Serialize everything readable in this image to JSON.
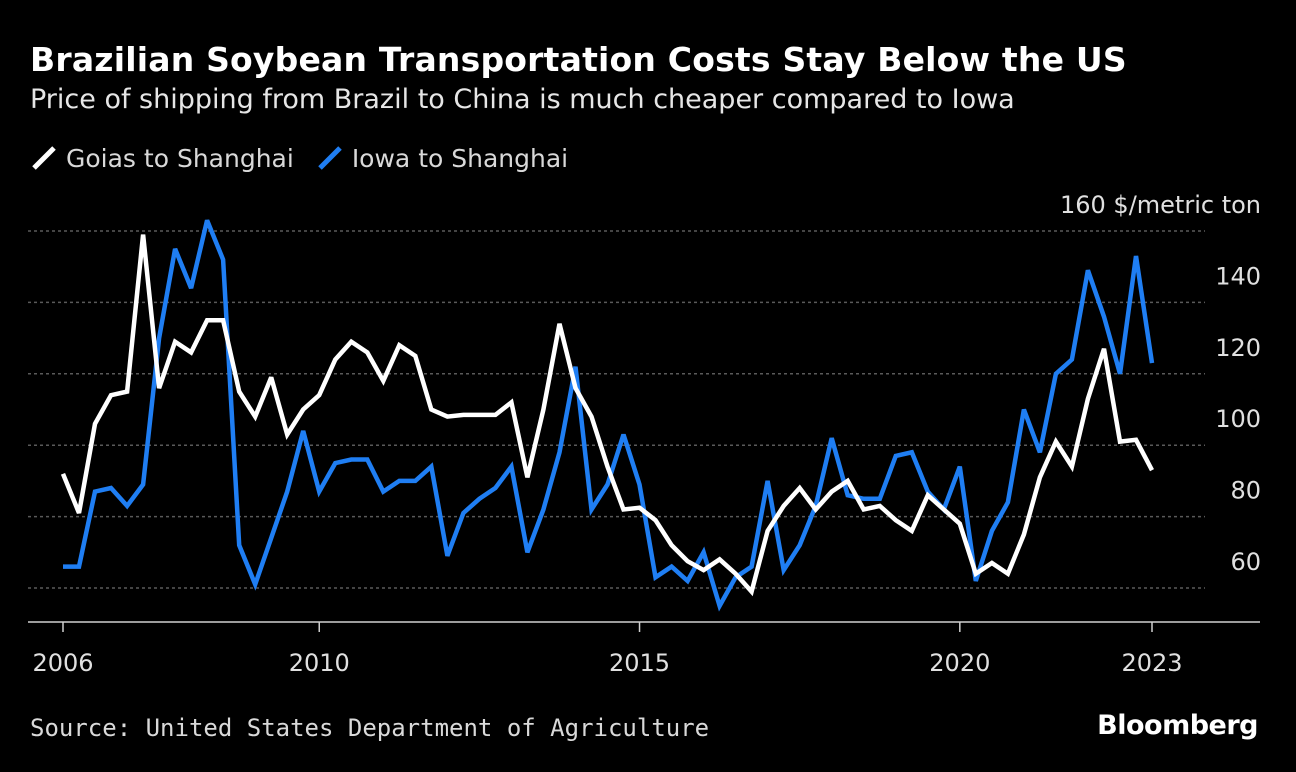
{
  "chart_data": {
    "type": "line",
    "title": "Brazilian Soybean Transportation Costs Stay Below the US",
    "subtitle": "Price of shipping from Brazil to China is much cheaper compared to Iowa",
    "ylabel": "160 $/metric ton",
    "y_tick_labels": [
      "60",
      "80",
      "100",
      "120",
      "140"
    ],
    "y_ticks": [
      60,
      80,
      100,
      120,
      140,
      160
    ],
    "ylim": [
      51,
      162
    ],
    "x_tick_labels": [
      "2006",
      "2010",
      "2015",
      "2020",
      "2023"
    ],
    "x_ticks": [
      2006,
      2010,
      2015,
      2020,
      2023
    ],
    "xlim": [
      2005.5,
      2023.66
    ],
    "grid": true,
    "legend_position": "top-left",
    "x": [
      2006.0,
      2006.25,
      2006.5,
      2006.75,
      2007.0,
      2007.25,
      2007.5,
      2007.75,
      2008.0,
      2008.25,
      2008.5,
      2008.75,
      2009.0,
      2009.25,
      2009.5,
      2009.75,
      2010.0,
      2010.25,
      2010.5,
      2010.75,
      2011.0,
      2011.25,
      2011.5,
      2011.75,
      2012.0,
      2012.25,
      2012.5,
      2012.75,
      2013.0,
      2013.25,
      2013.5,
      2013.75,
      2014.0,
      2014.25,
      2014.5,
      2014.75,
      2015.0,
      2015.25,
      2015.5,
      2015.75,
      2016.0,
      2016.25,
      2016.5,
      2016.75,
      2017.0,
      2017.25,
      2017.5,
      2017.75,
      2018.0,
      2018.25,
      2018.5,
      2018.75,
      2019.0,
      2019.25,
      2019.5,
      2019.75,
      2020.0,
      2020.25,
      2020.5,
      2020.75,
      2021.0,
      2021.25,
      2021.5,
      2021.75,
      2022.0,
      2022.25,
      2022.5,
      2022.75,
      2023.0
    ],
    "series": [
      {
        "name": "Goias to Shanghai",
        "color": "#ffffff",
        "values": [
          92,
          81,
          106,
          114,
          115,
          159,
          116,
          129,
          126,
          135,
          135,
          115,
          108,
          119,
          103,
          110,
          114,
          124,
          129,
          126,
          118,
          128,
          125,
          110,
          108,
          108.5,
          108.5,
          108.5,
          112,
          91,
          110,
          134,
          116,
          108,
          94,
          82,
          82.5,
          79,
          72,
          67.5,
          65,
          68,
          64,
          59,
          76,
          83,
          88,
          82,
          87,
          90,
          82,
          83,
          79,
          76,
          86,
          82,
          78,
          64,
          67,
          64,
          75,
          91,
          101,
          94,
          113,
          127,
          101,
          101.5,
          93
        ]
      },
      {
        "name": "Iowa to Shanghai",
        "color": "#1f7ef3",
        "values": [
          66,
          66,
          87,
          88,
          83,
          89,
          130,
          155,
          144,
          163,
          152,
          72,
          61,
          74,
          87,
          104,
          87,
          95,
          96,
          96,
          87,
          90,
          90,
          94,
          69,
          81,
          85,
          88,
          94,
          70,
          82,
          98,
          122,
          82,
          89,
          103,
          89,
          63,
          66,
          62,
          70,
          55,
          63,
          66,
          90,
          65,
          72,
          83,
          102,
          86,
          85,
          85,
          97,
          98,
          87,
          82,
          94,
          62,
          76,
          84,
          110,
          98,
          120,
          124,
          149,
          136,
          120,
          153,
          123
        ]
      }
    ]
  },
  "footer": {
    "source": "Source: United States Department of Agriculture",
    "brand": "Bloomberg"
  },
  "colors": {
    "background": "#000000",
    "grid": "#5a5a5a",
    "axis": "#cfcfcf",
    "text": "#ffffff",
    "muted_text": "#d9d9d9"
  }
}
